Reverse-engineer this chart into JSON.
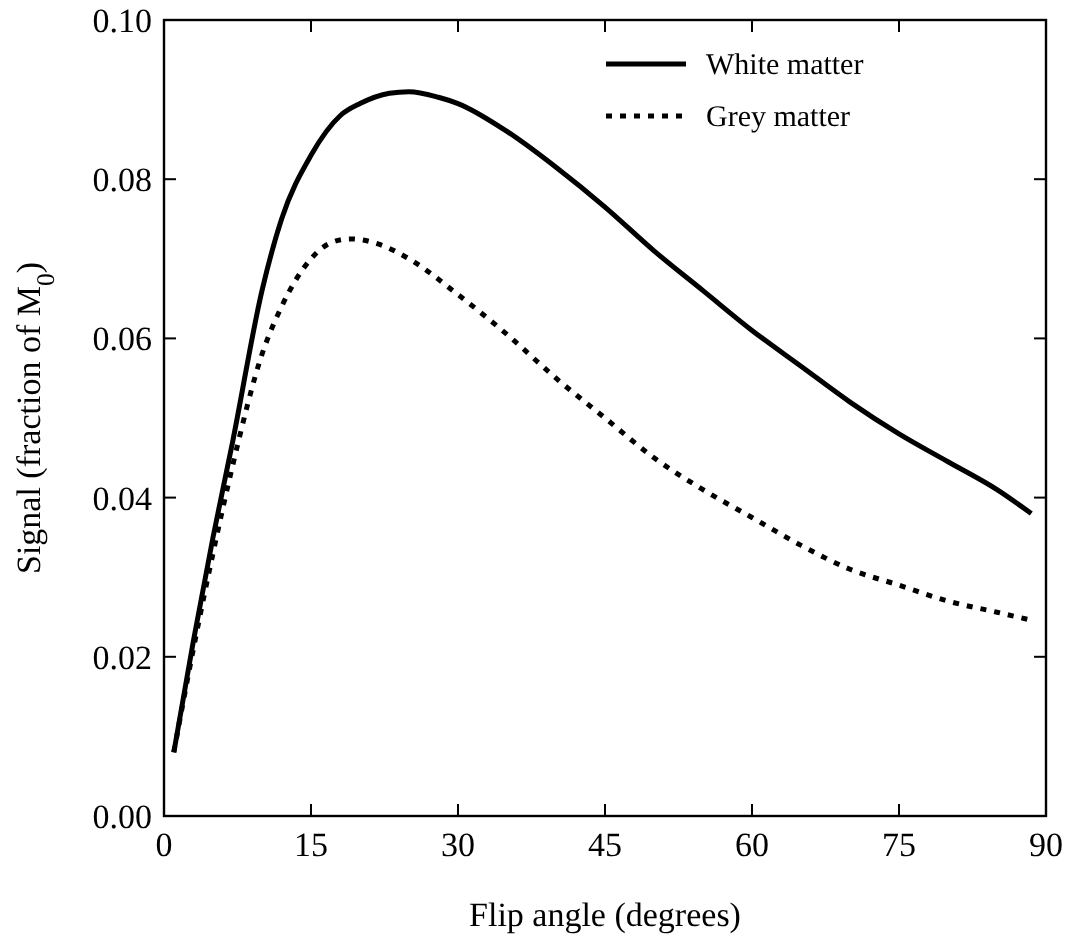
{
  "chart_data": {
    "type": "line",
    "xlabel": "Flip angle (degrees)",
    "ylabel": "Signal (fraction of M$_{0}$)",
    "xlim": [
      0,
      90
    ],
    "xticks": [
      0,
      15,
      30,
      45,
      60,
      75,
      90
    ],
    "ylim": [
      0,
      0.1
    ],
    "yticks": [
      {
        "value": 0,
        "label": "0.00"
      },
      {
        "value": 0.02,
        "label": "0.02"
      },
      {
        "value": 0.04,
        "label": "0.04"
      },
      {
        "value": 0.06,
        "label": "0.06"
      },
      {
        "value": 0.08,
        "label": "0.08"
      },
      {
        "value": 0.1,
        "label": "0.10"
      }
    ],
    "legend": "top right",
    "grid": false,
    "series": [
      {
        "name": "White matter",
        "color": "#000000",
        "line_style": "solid",
        "x": [
          1,
          3,
          5,
          7,
          10,
          12,
          15,
          18,
          20,
          23,
          25,
          28,
          30,
          35,
          40,
          45,
          50,
          55,
          60,
          65,
          70,
          75,
          80,
          85,
          88.5
        ],
        "values": [
          0.008,
          0.022,
          0.035,
          0.047,
          0.066,
          0.075,
          0.083,
          0.088,
          0.0895,
          0.0908,
          0.091,
          0.0903,
          0.0895,
          0.086,
          0.0815,
          0.0765,
          0.071,
          0.066,
          0.061,
          0.0565,
          0.052,
          0.048,
          0.0445,
          0.041,
          0.038
        ]
      },
      {
        "name": "Grey matter",
        "color": "#000000",
        "line_style": "dotted",
        "x": [
          1,
          3,
          5,
          7,
          10,
          12,
          15,
          17,
          19,
          22,
          25,
          30,
          35,
          40,
          45,
          50,
          55,
          60,
          65,
          70,
          75,
          80,
          85,
          88.5
        ],
        "values": [
          0.008,
          0.021,
          0.033,
          0.044,
          0.058,
          0.064,
          0.07,
          0.072,
          0.0725,
          0.0718,
          0.07,
          0.0655,
          0.0605,
          0.055,
          0.05,
          0.045,
          0.041,
          0.0375,
          0.034,
          0.031,
          0.029,
          0.027,
          0.0256,
          0.0246
        ]
      }
    ]
  }
}
